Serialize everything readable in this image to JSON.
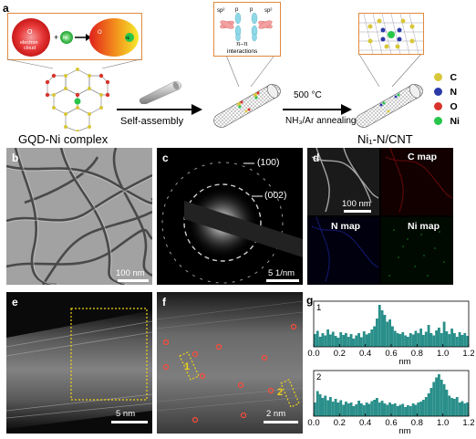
{
  "panel_a": {
    "label": "a",
    "inset_left": {
      "electron_cloud": "electron cloud",
      "o_symbol": "O",
      "ni_symbol": "Ni",
      "plus": "+"
    },
    "inset_mid": {
      "sp2_left": "sp²",
      "pz_left": "p",
      "pz_right": "p",
      "sp2_right": "sp²",
      "pi_pi": "π–π",
      "interactions": "interactions"
    },
    "step1_label": "Self-assembly",
    "step2_temp": "500 °C",
    "step2_gas": "NH₃/Ar annealing",
    "left_caption": "GQD-Ni complex",
    "right_caption": "Ni₁-N/CNT",
    "legend": [
      {
        "symbol": "C",
        "color": "#d8c63a"
      },
      {
        "symbol": "N",
        "color": "#2a3aa8"
      },
      {
        "symbol": "O",
        "color": "#d8342c"
      },
      {
        "symbol": "Ni",
        "color": "#27c54a"
      }
    ]
  },
  "panel_b": {
    "label": "b",
    "scale": "100 nm"
  },
  "panel_c": {
    "label": "c",
    "ring1": "(100)",
    "ring2": "(002)",
    "scale": "5 1/nm"
  },
  "panel_d": {
    "label": "d",
    "scale": "100 nm",
    "maps": [
      "C map",
      "N map",
      "Ni map"
    ]
  },
  "panel_e": {
    "label": "e",
    "scale": "5 nm"
  },
  "panel_f": {
    "label": "f",
    "scale": "2 nm",
    "marker1": "1",
    "marker2": "2"
  },
  "panel_g": {
    "label": "g",
    "xlabel": "nm",
    "trace1_label": "1",
    "trace2_label": "2"
  },
  "chart_data": [
    {
      "type": "bar",
      "title": "",
      "trace_label": "1",
      "xlabel": "nm",
      "xlim": [
        0,
        1.2
      ],
      "xticks": [
        "0.0",
        "0.2",
        "0.4",
        "0.6",
        "0.8",
        "1.0",
        "1.2"
      ],
      "color": "#2a8f8a",
      "x": [
        0.0,
        0.02,
        0.04,
        0.06,
        0.08,
        0.1,
        0.12,
        0.14,
        0.16,
        0.18,
        0.2,
        0.22,
        0.24,
        0.26,
        0.28,
        0.3,
        0.32,
        0.34,
        0.36,
        0.38,
        0.4,
        0.42,
        0.44,
        0.46,
        0.48,
        0.5,
        0.52,
        0.54,
        0.56,
        0.58,
        0.6,
        0.62,
        0.64,
        0.66,
        0.68,
        0.7,
        0.72,
        0.74,
        0.76,
        0.78,
        0.8,
        0.82,
        0.84,
        0.86,
        0.88,
        0.9,
        0.92,
        0.94,
        0.96,
        0.98,
        1.0,
        1.02,
        1.04,
        1.06,
        1.08,
        1.1,
        1.12,
        1.14,
        1.16,
        1.18
      ],
      "values": [
        0.28,
        0.35,
        0.22,
        0.3,
        0.25,
        0.38,
        0.27,
        0.33,
        0.24,
        0.2,
        0.32,
        0.26,
        0.3,
        0.22,
        0.28,
        0.18,
        0.25,
        0.3,
        0.21,
        0.34,
        0.27,
        0.3,
        0.38,
        0.45,
        0.62,
        0.92,
        0.8,
        0.7,
        0.55,
        0.6,
        0.45,
        0.35,
        0.3,
        0.28,
        0.32,
        0.25,
        0.22,
        0.3,
        0.27,
        0.35,
        0.3,
        0.4,
        0.26,
        0.33,
        0.48,
        0.3,
        0.25,
        0.36,
        0.42,
        0.3,
        0.55,
        0.34,
        0.28,
        0.4,
        0.3,
        0.22,
        0.32,
        0.26,
        0.3,
        0.24
      ]
    },
    {
      "type": "bar",
      "title": "",
      "trace_label": "2",
      "xlabel": "nm",
      "xlim": [
        0,
        1.2
      ],
      "xticks": [
        "0.0",
        "0.2",
        "0.4",
        "0.6",
        "0.8",
        "1.0",
        "1.2"
      ],
      "color": "#2a8f8a",
      "x": [
        0.0,
        0.02,
        0.04,
        0.06,
        0.08,
        0.1,
        0.12,
        0.14,
        0.16,
        0.18,
        0.2,
        0.22,
        0.24,
        0.26,
        0.28,
        0.3,
        0.32,
        0.34,
        0.36,
        0.38,
        0.4,
        0.42,
        0.44,
        0.46,
        0.48,
        0.5,
        0.52,
        0.54,
        0.56,
        0.58,
        0.6,
        0.62,
        0.64,
        0.66,
        0.68,
        0.7,
        0.72,
        0.74,
        0.76,
        0.78,
        0.8,
        0.82,
        0.84,
        0.86,
        0.88,
        0.9,
        0.92,
        0.94,
        0.96,
        0.98,
        1.0,
        1.02,
        1.04,
        1.06,
        1.08,
        1.1,
        1.12,
        1.14,
        1.16,
        1.18
      ],
      "values": [
        0.3,
        0.55,
        0.48,
        0.4,
        0.45,
        0.35,
        0.42,
        0.32,
        0.38,
        0.3,
        0.35,
        0.25,
        0.32,
        0.28,
        0.3,
        0.22,
        0.26,
        0.34,
        0.28,
        0.24,
        0.3,
        0.27,
        0.33,
        0.36,
        0.4,
        0.3,
        0.34,
        0.28,
        0.25,
        0.3,
        0.26,
        0.28,
        0.22,
        0.25,
        0.27,
        0.2,
        0.24,
        0.22,
        0.28,
        0.25,
        0.3,
        0.32,
        0.36,
        0.42,
        0.5,
        0.62,
        0.75,
        0.85,
        0.92,
        0.8,
        0.7,
        0.58,
        0.45,
        0.4,
        0.38,
        0.42,
        0.3,
        0.33,
        0.28,
        0.3
      ]
    }
  ]
}
